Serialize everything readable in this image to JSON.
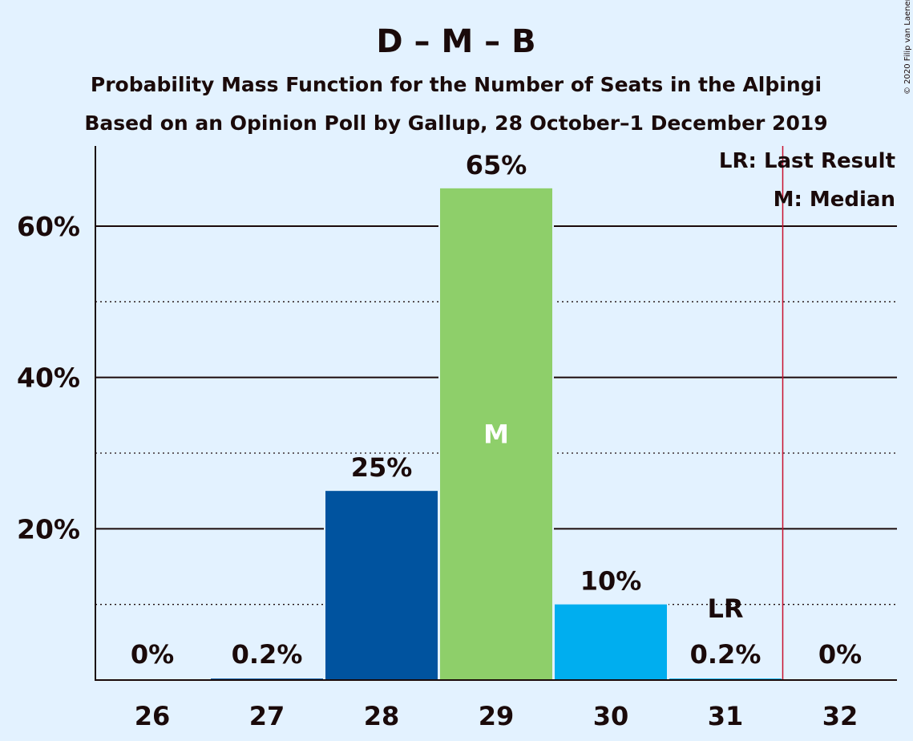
{
  "title": "D – M – B",
  "subtitle_1": "Probability Mass Function for the Number of Seats in the Alþingi",
  "subtitle_2": "Based on an Opinion Poll by Gallup, 28 October–1 December 2019",
  "copyright": "© 2020 Filip van Laenen",
  "legend": {
    "last_result": "LR: Last Result",
    "median": "M: Median"
  },
  "markers": {
    "median_label": "M",
    "lr_label": "LR"
  },
  "chart_data": {
    "type": "bar",
    "title": "D – M – B",
    "subtitle": "Probability Mass Function for the Number of Seats in the Alþingi",
    "categories": [
      "26",
      "27",
      "28",
      "29",
      "30",
      "31",
      "32"
    ],
    "values": [
      0,
      0.2,
      25,
      65,
      10,
      0.2,
      0
    ],
    "data_labels": [
      "0%",
      "0.2%",
      "25%",
      "65%",
      "10%",
      "0.2%",
      "0%"
    ],
    "bar_colors": [
      "#00539f",
      "#00539f",
      "#00539f",
      "#8ecf6a",
      "#00aeef",
      "#00aeef",
      "#00aeef"
    ],
    "y_ticks": [
      {
        "value": 20,
        "label": "20%"
      },
      {
        "value": 40,
        "label": "40%"
      },
      {
        "value": 60,
        "label": "60%"
      }
    ],
    "minor_gridlines": [
      10,
      30,
      50
    ],
    "ylim": [
      0,
      70.6
    ],
    "median_seat": "29",
    "last_result_seat": "31",
    "last_result_line_after": "31",
    "last_result_line_color": "#c8102e",
    "grid": true,
    "legend_position": "top-right",
    "xlabel": "",
    "ylabel": ""
  }
}
